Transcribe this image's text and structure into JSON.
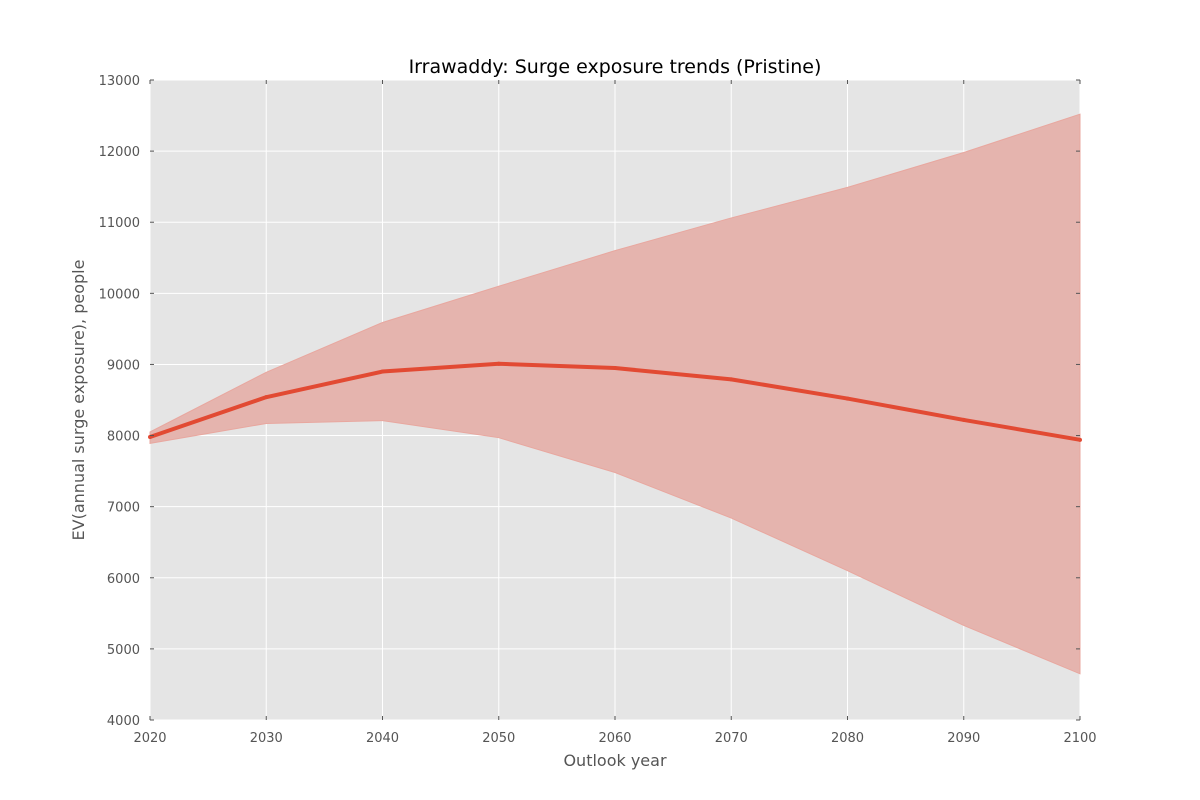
{
  "chart_data": {
    "type": "line",
    "title": "Irrawaddy: Surge exposure trends (Pristine)",
    "xlabel": "Outlook year",
    "ylabel": "EV(annual surge exposure), people",
    "xlim": [
      2020,
      2100
    ],
    "ylim": [
      4000,
      13000
    ],
    "x_ticks": [
      "2020",
      "2030",
      "2040",
      "2050",
      "2060",
      "2070",
      "2080",
      "2090",
      "2100"
    ],
    "y_ticks": [
      "4000",
      "5000",
      "6000",
      "7000",
      "8000",
      "9000",
      "10000",
      "11000",
      "12000",
      "13000"
    ],
    "grid": true,
    "x": [
      2020,
      2030,
      2040,
      2050,
      2060,
      2070,
      2080,
      2090,
      2100
    ],
    "series": [
      {
        "values": [
          7980,
          8540,
          8900,
          9010,
          8950,
          8790,
          8520,
          8220,
          7940
        ],
        "band_upper": [
          8050,
          8890,
          9590,
          10100,
          10600,
          11060,
          11490,
          11980,
          12520
        ],
        "band_lower": [
          7890,
          8170,
          8210,
          7970,
          7480,
          6840,
          6100,
          5330,
          4650
        ],
        "color": "#E24A33",
        "band_color": "#E5B4AE"
      }
    ],
    "colors": {
      "plot_background": "#E5E5E5",
      "grid": "#FFFFFF"
    }
  }
}
